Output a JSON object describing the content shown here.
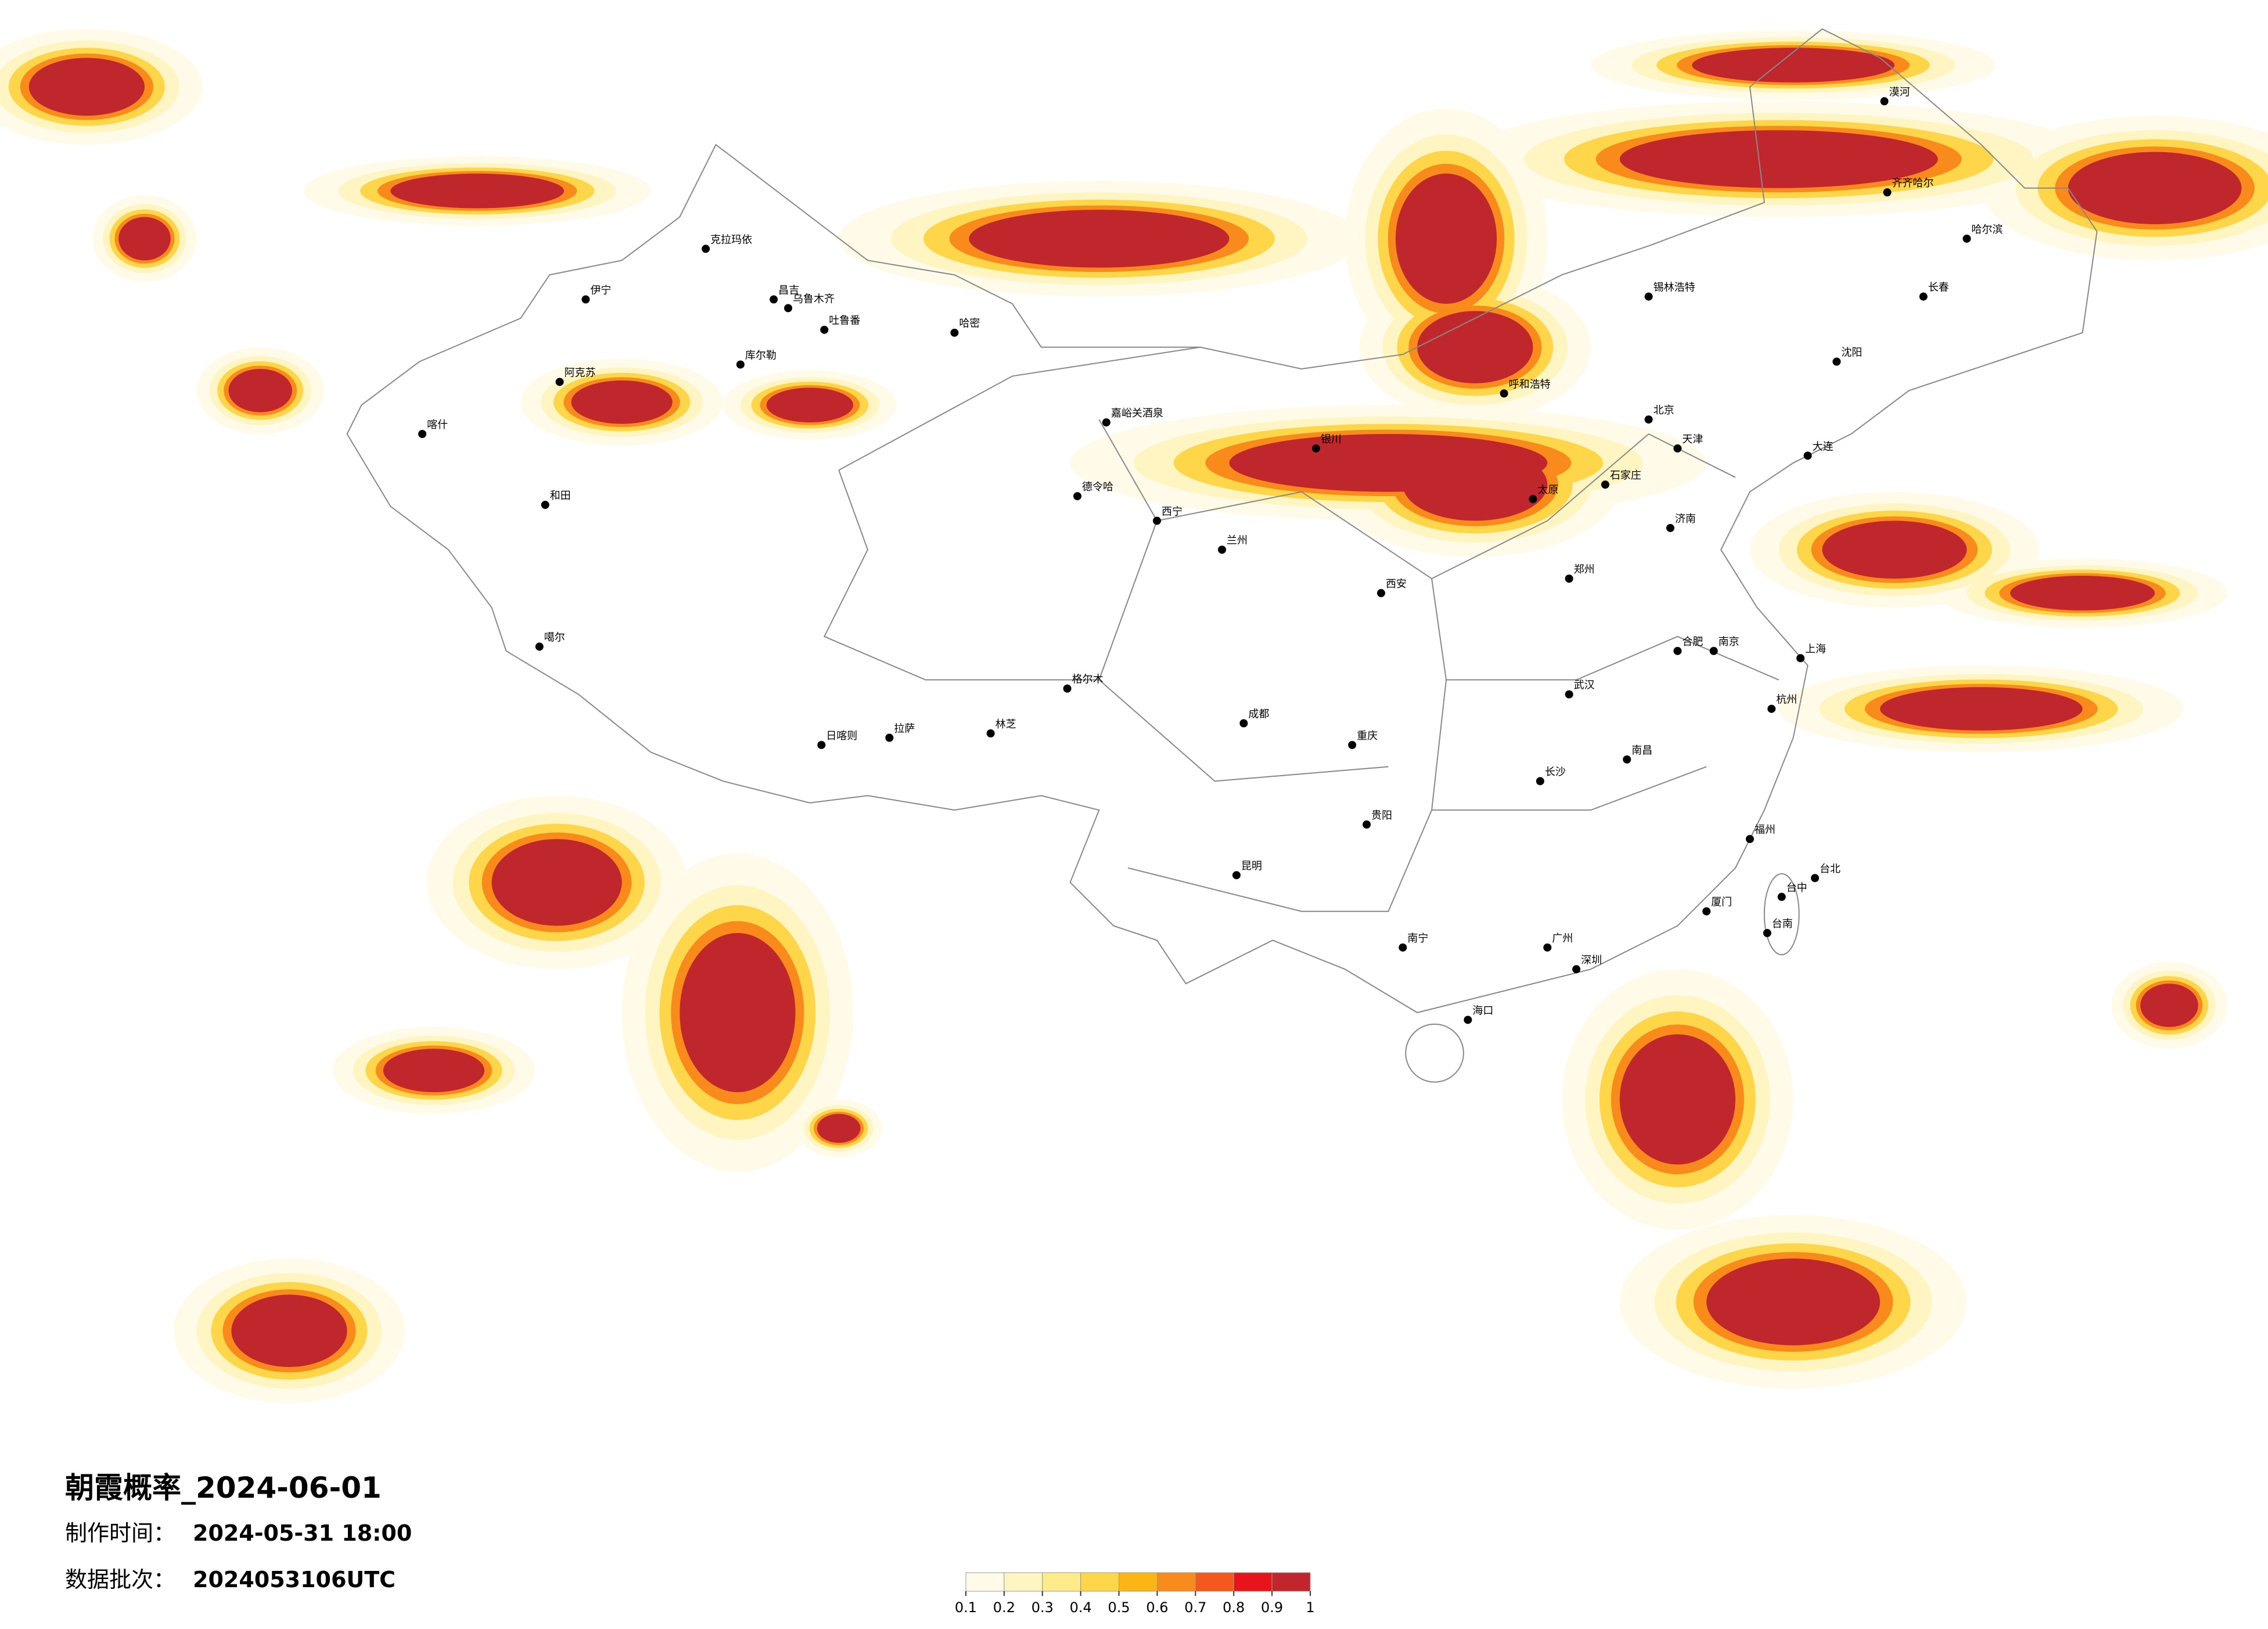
{
  "title": "朝霞概率_2024-06-01",
  "made_time_label": "制作时间：",
  "made_time": "2024-05-31 18:00",
  "batch_label": "数据批次：",
  "batch": "2024053106UTC",
  "colorbar": {
    "ticks": [
      0.1,
      0.2,
      0.3,
      0.4,
      0.5,
      0.6,
      0.7,
      0.8,
      0.9,
      1
    ],
    "colors": [
      "#fffbe8",
      "#fff5c2",
      "#ffeb8a",
      "#ffd54a",
      "#fdb515",
      "#f98a1c",
      "#f4581c",
      "#e8141c",
      "#c0272d"
    ]
  },
  "cities": [
    "克拉玛依",
    "伊宁",
    "昌吉",
    "乌鲁木齐",
    "吐鲁番",
    "哈密",
    "阿克苏",
    "库尔勒",
    "和田",
    "喀什",
    "嘉峪关酒泉",
    "德令哈",
    "格尔木",
    "拉萨",
    "日喀则",
    "林芝",
    "噶尔",
    "北京",
    "天津",
    "石家庄",
    "太原",
    "郑州",
    "西安",
    "兰州",
    "西宁",
    "银川",
    "呼和浩特",
    "哈尔滨",
    "长春",
    "沈阳",
    "大连",
    "济南",
    "南京",
    "上海",
    "杭州",
    "合肥",
    "武汉",
    "长沙",
    "南昌",
    "福州",
    "厦门",
    "广州",
    "深圳",
    "南宁",
    "海口",
    "重庆",
    "成都",
    "贵阳",
    "昆明",
    "台北",
    "台中",
    "台南",
    "齐齐哈尔",
    "锡林浩特",
    "漠河"
  ]
}
